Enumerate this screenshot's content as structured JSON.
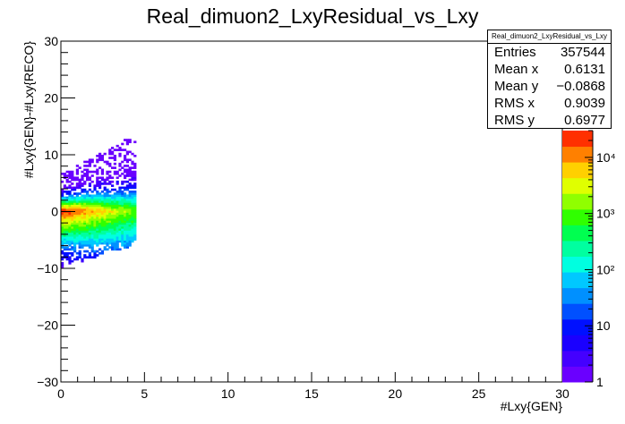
{
  "chart_data": {
    "type": "heatmap",
    "title": "Real_dimuon2_LxyResidual_vs_Lxy",
    "xlabel": "#Lxy{GEN}",
    "ylabel": "#Lxy{GEN}-#Lxy{RECO}",
    "xlim": [
      0,
      30
    ],
    "ylim": [
      -30,
      30
    ],
    "x_ticks": [
      "0",
      "5",
      "10",
      "15",
      "20",
      "25",
      "30"
    ],
    "y_ticks": [
      "−30",
      "−20",
      "−10",
      "0",
      "10",
      "20",
      "30"
    ],
    "z_scale": "log",
    "z_ticks": [
      "1",
      "10",
      "10²",
      "10³",
      "10⁴"
    ],
    "z_range": [
      1,
      30000
    ],
    "grid": false,
    "palette": [
      "#6a00ff",
      "#4400ff",
      "#1a00ff",
      "#0010ff",
      "#0050ff",
      "#0090ff",
      "#00c8ff",
      "#00ffe0",
      "#00ffa0",
      "#00ff50",
      "#30ff00",
      "#90ff00",
      "#e0ff00",
      "#ffd000",
      "#ff8000",
      "#ff3000"
    ],
    "stats": {
      "name": "Real_dimuon2_LxyResidual_vs_Lxy",
      "rows": [
        {
          "label": "Entries",
          "value": "357544"
        },
        {
          "label": "Mean x",
          "value": "0.6131"
        },
        {
          "label": "Mean y",
          "value": "−0.0868"
        },
        {
          "label": "RMS x",
          "value": "0.9039"
        },
        {
          "label": "RMS y",
          "value": "0.6977"
        }
      ]
    }
  }
}
